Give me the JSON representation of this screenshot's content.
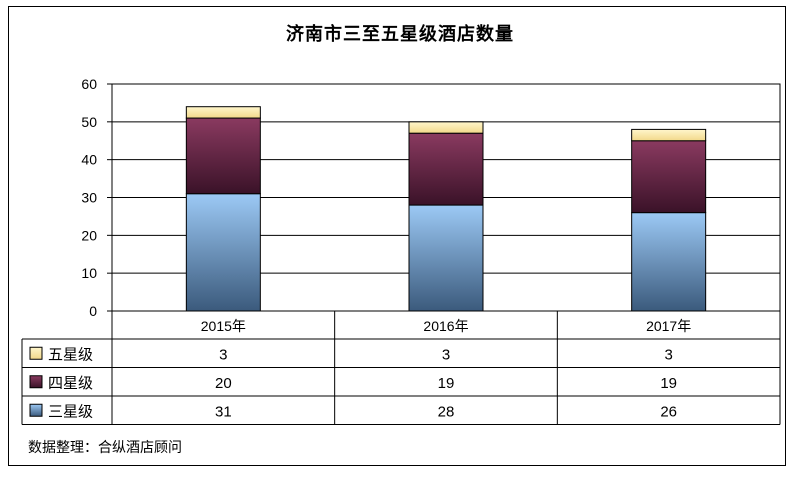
{
  "chart_data": {
    "type": "bar",
    "stacked": true,
    "title": "济南市三至五星级酒店数量",
    "categories": [
      "2015年",
      "2016年",
      "2017年"
    ],
    "series": [
      {
        "name": "三星级",
        "values": [
          31,
          28,
          26
        ],
        "color": "#7fb2e6"
      },
      {
        "name": "四星级",
        "values": [
          20,
          19,
          19
        ],
        "color": "#7a2e52"
      },
      {
        "name": "五星级",
        "values": [
          3,
          3,
          3
        ],
        "color": "#fdeeb0"
      }
    ],
    "ylim": [
      0,
      60
    ],
    "yticks": [
      0,
      10,
      20,
      30,
      40,
      50,
      60
    ],
    "grid": true,
    "legend": "data-table-left"
  },
  "source": "数据整理：合纵酒店顾问"
}
